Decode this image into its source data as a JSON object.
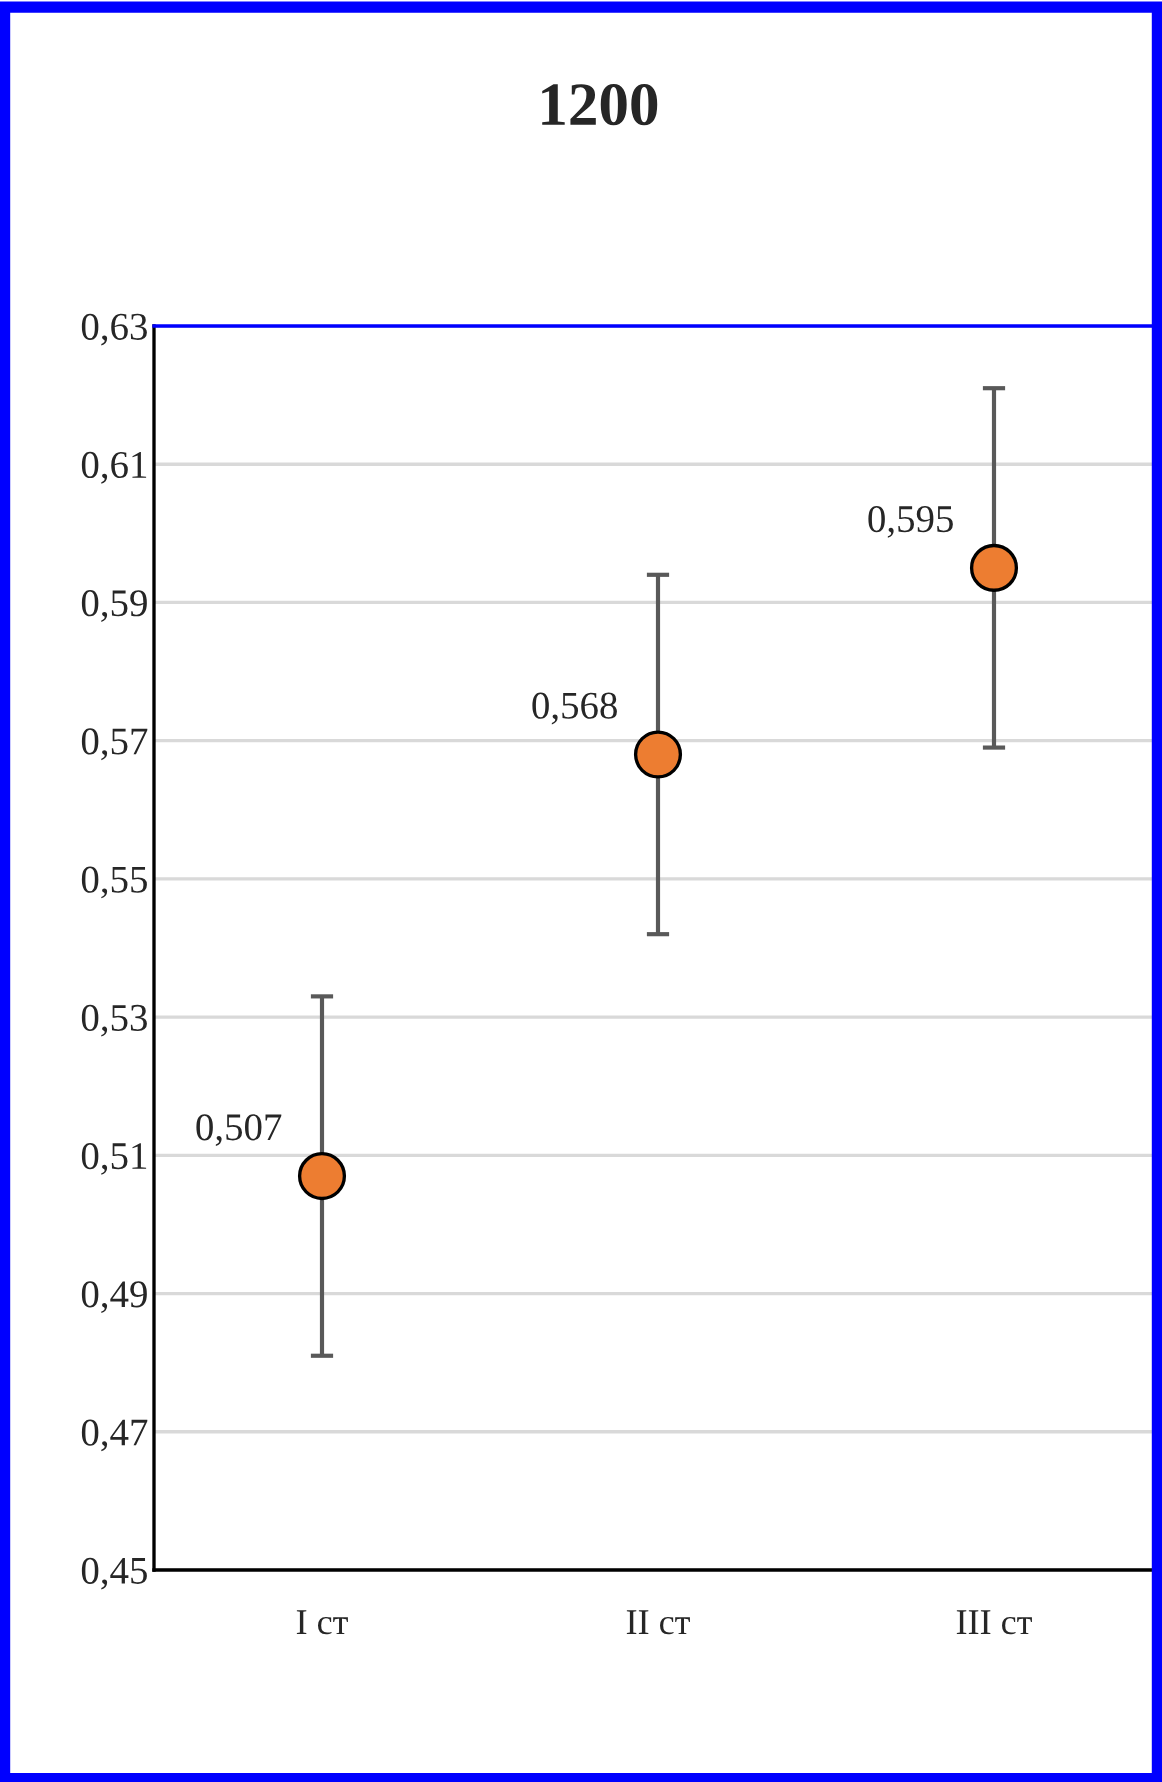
{
  "chart_data": {
    "type": "scatter",
    "title": "1200",
    "categories": [
      "I ст",
      "II ст",
      "III ст"
    ],
    "series": [
      {
        "color": "#ed7d31",
        "values": [
          0.507,
          0.568,
          0.595
        ],
        "errors": [
          0.026,
          0.026,
          0.026
        ],
        "value_labels": [
          "0,507",
          "0,568",
          "0,595"
        ]
      }
    ],
    "ylim": [
      0.45,
      0.63
    ],
    "yticks": [
      {
        "value": 0.45,
        "label": "0,45"
      },
      {
        "value": 0.47,
        "label": "0,47"
      },
      {
        "value": 0.49,
        "label": "0,49"
      },
      {
        "value": 0.51,
        "label": "0,51"
      },
      {
        "value": 0.53,
        "label": "0,53"
      },
      {
        "value": 0.55,
        "label": "0,55"
      },
      {
        "value": 0.57,
        "label": "0,57"
      },
      {
        "value": 0.59,
        "label": "0,59"
      },
      {
        "value": 0.61,
        "label": "0,61"
      },
      {
        "value": 0.63,
        "label": "0,63"
      }
    ],
    "grid": "y",
    "marker": "circle",
    "legend": false
  }
}
